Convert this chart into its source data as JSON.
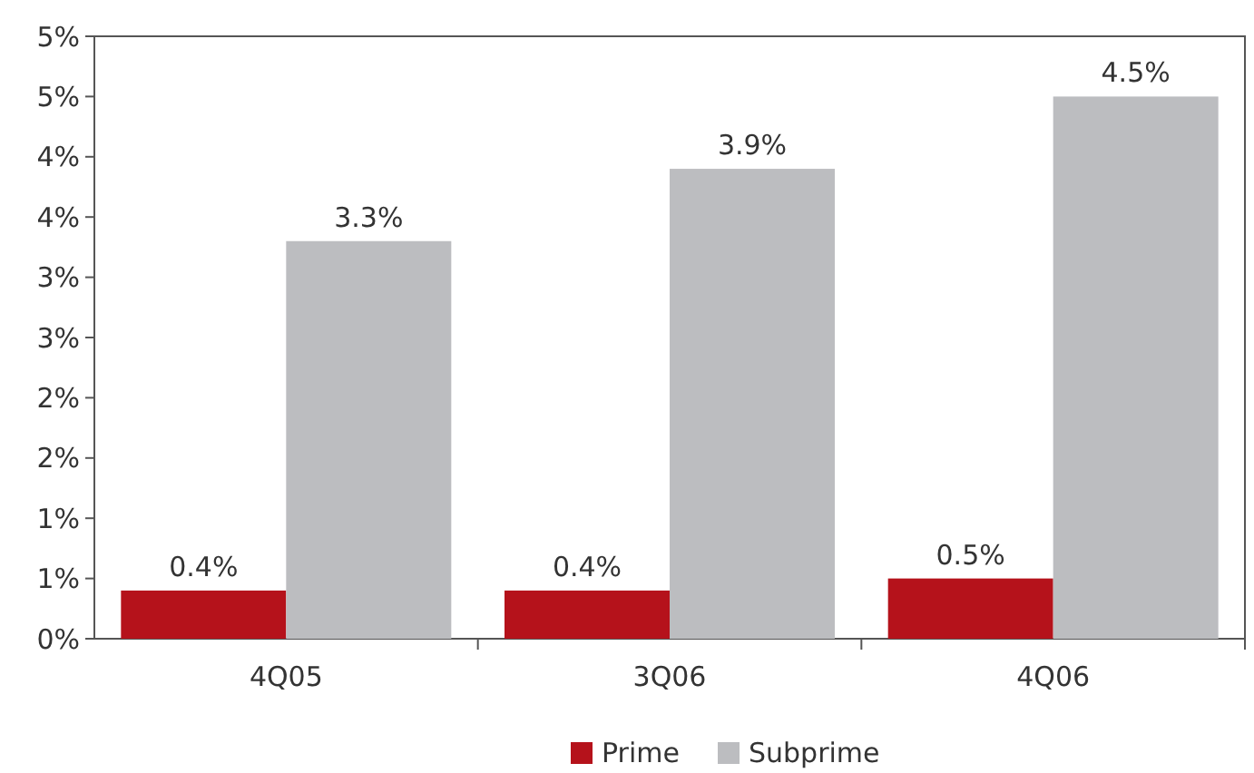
{
  "chart_data": {
    "type": "bar",
    "categories": [
      "4Q05",
      "3Q06",
      "4Q06"
    ],
    "series": [
      {
        "name": "Prime",
        "color": "#b5121b",
        "values": [
          0.4,
          0.4,
          0.5
        ],
        "value_labels": [
          "0.4%",
          "0.4%",
          "0.5%"
        ]
      },
      {
        "name": "Subprime",
        "color": "#bcbdc0",
        "values": [
          3.3,
          3.9,
          4.5
        ],
        "value_labels": [
          "3.3%",
          "3.9%",
          "4.5%"
        ]
      }
    ],
    "ylim": [
      0,
      5
    ],
    "yticks": [
      {
        "value": 0,
        "label": "0%"
      },
      {
        "value": 0.5,
        "label": "1%"
      },
      {
        "value": 1,
        "label": "1%"
      },
      {
        "value": 1.5,
        "label": "2%"
      },
      {
        "value": 2,
        "label": "2%"
      },
      {
        "value": 2.5,
        "label": "3%"
      },
      {
        "value": 3,
        "label": "3%"
      },
      {
        "value": 3.5,
        "label": "4%"
      },
      {
        "value": 4,
        "label": "4%"
      },
      {
        "value": 4.5,
        "label": "5%"
      },
      {
        "value": 5,
        "label": "5%"
      }
    ],
    "grid": false,
    "legend": "bottom"
  }
}
